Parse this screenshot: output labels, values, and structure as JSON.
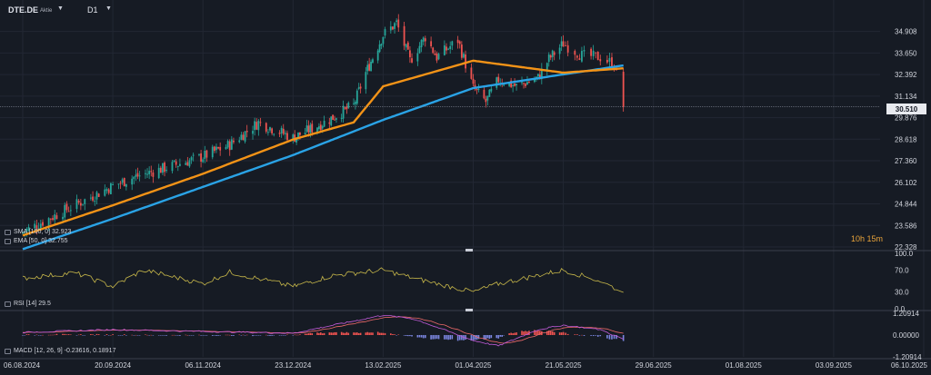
{
  "header": {
    "symbol": "DTE.DE",
    "instrument_type": "Aktie",
    "timeframe": "D1"
  },
  "price_panel": {
    "y_ticks": [
      "34.908",
      "33.650",
      "32.392",
      "31.134",
      "29.876",
      "28.618",
      "27.360",
      "26.102",
      "24.844",
      "23.586",
      "22.328"
    ],
    "y_range": [
      22.328,
      36.0
    ],
    "current_price": "30.510",
    "countdown": "10h 15m",
    "legend": [
      {
        "label": "SMA [100, 0]  32.923",
        "color": "#2aa3e6"
      },
      {
        "label": "EMA [50, 0]  32.755",
        "color": "#f39317"
      }
    ]
  },
  "rsi_panel": {
    "label": "RSI [14]  29.5",
    "y_ticks": [
      "100.0",
      "70.0",
      "30.0",
      "0.0"
    ],
    "color": "#c8b84a"
  },
  "macd_panel": {
    "label": "MACD [12, 26, 9]  -0.23616,  0.18917",
    "y_ticks": [
      "1.20914",
      "0.00000",
      "-1.20914"
    ]
  },
  "x_ticks": [
    "06.08.2024",
    "20.09.2024",
    "06.11.2024",
    "23.12.2024",
    "13.02.2025",
    "01.04.2025",
    "21.05.2025",
    "29.06.2025",
    "01.08.2025",
    "03.09.2025",
    "06.10.2025"
  ],
  "chart_data": {
    "type": "candlestick",
    "title": "",
    "x_ticks": [
      "06.08.2024",
      "20.09.2024",
      "06.11.2024",
      "23.12.2024",
      "13.02.2025",
      "01.04.2025",
      "21.05.2025",
      "29.06.2025",
      "01.08.2025",
      "03.09.2025",
      "06.10.2025"
    ],
    "ylim": [
      22.328,
      36.0
    ],
    "close_anchors": [
      [
        "06.08.2024",
        23.2
      ],
      [
        "20.09.2024",
        25.9
      ],
      [
        "01.10.2024",
        26.4
      ],
      [
        "06.11.2024",
        27.6
      ],
      [
        "20.11.2024",
        28.3
      ],
      [
        "05.12.2024",
        29.6
      ],
      [
        "23.12.2024",
        28.7
      ],
      [
        "10.01.2025",
        29.6
      ],
      [
        "27.01.2025",
        30.6
      ],
      [
        "03.02.2025",
        32.5
      ],
      [
        "13.02.2025",
        34.7
      ],
      [
        "20.02.2025",
        35.4
      ],
      [
        "27.02.2025",
        33.2
      ],
      [
        "07.03.2025",
        34.6
      ],
      [
        "13.03.2025",
        33.4
      ],
      [
        "24.03.2025",
        34.4
      ],
      [
        "01.04.2025",
        31.6
      ],
      [
        "08.04.2025",
        30.8
      ],
      [
        "15.04.2025",
        32.1
      ],
      [
        "25.04.2025",
        31.7
      ],
      [
        "07.05.2025",
        32.2
      ],
      [
        "13.05.2025",
        33.3
      ],
      [
        "21.05.2025",
        34.2
      ],
      [
        "29.05.2025",
        33.5
      ],
      [
        "06.06.2025",
        33.4
      ],
      [
        "12.06.2025",
        33.0
      ],
      [
        "16.06.2025",
        30.51
      ]
    ],
    "sma_100": {
      "name": "SMA [100, 0]",
      "last": 32.923,
      "anchors": [
        [
          "06.08.2024",
          22.2
        ],
        [
          "01.04.2025",
          31.6
        ],
        [
          "21.05.2025",
          32.4
        ],
        [
          "16.06.2025",
          32.923
        ]
      ]
    },
    "ema_50": {
      "name": "EMA [50, 0]",
      "last": 32.755,
      "anchors": [
        [
          "06.08.2024",
          23.0
        ],
        [
          "06.11.2024",
          26.6
        ],
        [
          "23.12.2024",
          28.6
        ],
        [
          "27.01.2025",
          29.6
        ],
        [
          "13.02.2025",
          31.7
        ],
        [
          "01.04.2025",
          33.2
        ],
        [
          "21.05.2025",
          32.5
        ],
        [
          "16.06.2025",
          32.755
        ]
      ]
    },
    "rsi": {
      "name": "RSI [14]",
      "last": 29.5,
      "ylim": [
        0,
        100
      ],
      "anchors": [
        [
          "06.08.2024",
          55
        ],
        [
          "01.09.2024",
          65
        ],
        [
          "20.09.2024",
          40
        ],
        [
          "06.10.2024",
          70
        ],
        [
          "06.11.2024",
          45
        ],
        [
          "20.11.2024",
          66
        ],
        [
          "23.12.2024",
          40
        ],
        [
          "15.01.2025",
          60
        ],
        [
          "13.02.2025",
          70
        ],
        [
          "01.03.2025",
          55
        ],
        [
          "01.04.2025",
          30
        ],
        [
          "15.04.2025",
          45
        ],
        [
          "21.05.2025",
          70
        ],
        [
          "06.06.2025",
          50
        ],
        [
          "16.06.2025",
          29.5
        ]
      ]
    },
    "macd": {
      "name": "MACD [12, 26, 9]",
      "macd_last": -0.23616,
      "signal_last": 0.18917,
      "ylim": [
        -1.20914,
        1.20914
      ],
      "anchors": [
        [
          "06.08.2024",
          0.15
        ],
        [
          "20.09.2024",
          0.3
        ],
        [
          "06.11.2024",
          0.2
        ],
        [
          "23.12.2024",
          0.1
        ],
        [
          "13.02.2025",
          1.1
        ],
        [
          "01.03.2025",
          0.9
        ],
        [
          "01.04.2025",
          -0.3
        ],
        [
          "15.04.2025",
          -0.6
        ],
        [
          "07.05.2025",
          0.3
        ],
        [
          "21.05.2025",
          0.55
        ],
        [
          "06.06.2025",
          0.3
        ],
        [
          "16.06.2025",
          -0.23616
        ]
      ]
    }
  },
  "colors": {
    "background": "#161b24",
    "grid": "#222733",
    "up": "#26a69a",
    "down": "#ef5350",
    "sma": "#2aa3e6",
    "ema": "#f39317",
    "rsi": "#c8b84a"
  }
}
